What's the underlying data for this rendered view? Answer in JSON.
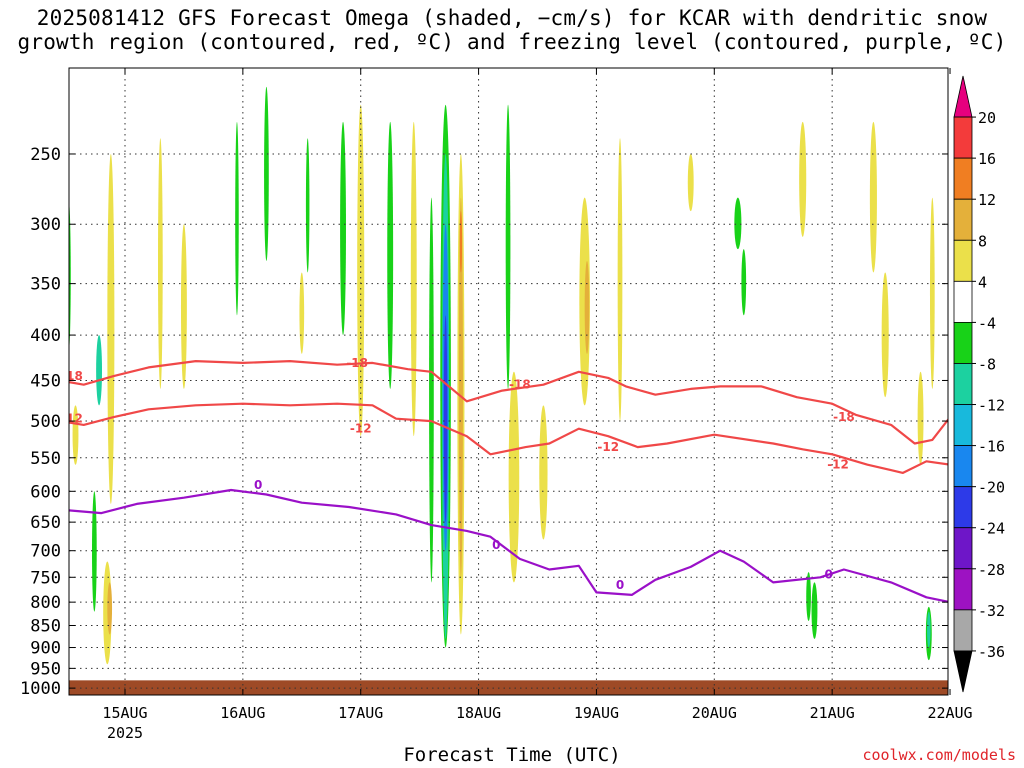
{
  "header": {
    "title_line1": "2025081412 GFS Forecast Omega (shaded, −cm/s) for KCAR with dendritic snow",
    "title_line2": "growth region (contoured, red, ºC) and freezing level (contoured, purple, ºC)"
  },
  "footer": {
    "xlabel": "Forecast Time (UTC)",
    "credit": "coolwx.com/models"
  },
  "chart_data": {
    "type": "heatmap",
    "title": "2025081412 GFS Forecast Omega (shaded, −cm/s) for KCAR with dendritic snow growth region (contoured, red, ºC) and freezing level (contoured, purple, ºC)",
    "xlabel": "Forecast Time (UTC)",
    "ylabel": "",
    "x_range_days_label": [
      "15AUG",
      "22AUG"
    ],
    "x_ticks": [
      {
        "label": "15AUG",
        "sublabel": "2025",
        "day": 0
      },
      {
        "label": "16AUG",
        "sublabel": "",
        "day": 1
      },
      {
        "label": "17AUG",
        "sublabel": "",
        "day": 2
      },
      {
        "label": "18AUG",
        "sublabel": "",
        "day": 3
      },
      {
        "label": "19AUG",
        "sublabel": "",
        "day": 4
      },
      {
        "label": "20AUG",
        "sublabel": "",
        "day": 5
      },
      {
        "label": "21AUG",
        "sublabel": "",
        "day": 6
      },
      {
        "label": "22AUG",
        "sublabel": "",
        "day": 7
      }
    ],
    "x_start_day": -0.75,
    "x_end_day": 7,
    "y_ticks": [
      250,
      300,
      350,
      400,
      450,
      500,
      550,
      600,
      650,
      700,
      750,
      800,
      850,
      900,
      950,
      1000
    ],
    "y_range": [
      200,
      1018
    ],
    "y_scale": "log",
    "y_reversed": true,
    "grid": true,
    "colorbar": {
      "labels": [
        "20",
        "16",
        "12",
        "8",
        "4",
        "-4",
        "-8",
        "-12",
        "-16",
        "-20",
        "-24",
        "-28",
        "-32",
        "-36"
      ],
      "bins": [
        {
          "color": "#e6007e",
          "kind": "triangle-up"
        },
        {
          "color": "#f33b3b"
        },
        {
          "color": "#f07e22"
        },
        {
          "color": "#e4b03a"
        },
        {
          "color": "#ebe04a"
        },
        {
          "color": "#ffffff"
        },
        {
          "color": "#18d218"
        },
        {
          "color": "#1cd1a0"
        },
        {
          "color": "#18b9dc"
        },
        {
          "color": "#1987ef"
        },
        {
          "color": "#2d3ae8"
        },
        {
          "color": "#6e16c8"
        },
        {
          "color": "#9d12c2"
        },
        {
          "color": "#a8a8a8"
        },
        {
          "color": "#000000",
          "kind": "triangle-down"
        }
      ]
    },
    "ground": {
      "color": "#9e4a26",
      "from_pressure": 980
    },
    "omega_features": [
      {
        "x": -0.12,
        "p_top": 250,
        "p_bot": 620,
        "w": 0.06,
        "color": "#ebe04a"
      },
      {
        "x": -0.15,
        "p_top": 720,
        "p_bot": 940,
        "w": 0.07,
        "color": "#ebe04a"
      },
      {
        "x": -0.13,
        "p_top": 760,
        "p_bot": 870,
        "w": 0.04,
        "color": "#e4b03a"
      },
      {
        "x": -0.22,
        "p_top": 400,
        "p_bot": 480,
        "w": 0.05,
        "color": "#1cd1a0"
      },
      {
        "x": -0.26,
        "p_top": 600,
        "p_bot": 820,
        "w": 0.04,
        "color": "#18d218"
      },
      {
        "x": -0.48,
        "p_top": 280,
        "p_bot": 420,
        "w": 0.04,
        "color": "#18d218"
      },
      {
        "x": -0.42,
        "p_top": 480,
        "p_bot": 560,
        "w": 0.05,
        "color": "#ebe04a"
      },
      {
        "x": 0.3,
        "p_top": 240,
        "p_bot": 460,
        "w": 0.04,
        "color": "#ebe04a"
      },
      {
        "x": 0.5,
        "p_top": 300,
        "p_bot": 460,
        "w": 0.05,
        "color": "#ebe04a"
      },
      {
        "x": 0.95,
        "p_top": 230,
        "p_bot": 380,
        "w": 0.03,
        "color": "#18d218"
      },
      {
        "x": 1.2,
        "p_top": 210,
        "p_bot": 330,
        "w": 0.04,
        "color": "#18d218"
      },
      {
        "x": 1.5,
        "p_top": 340,
        "p_bot": 420,
        "w": 0.04,
        "color": "#ebe04a"
      },
      {
        "x": 1.55,
        "p_top": 240,
        "p_bot": 340,
        "w": 0.03,
        "color": "#18d218"
      },
      {
        "x": 1.85,
        "p_top": 230,
        "p_bot": 400,
        "w": 0.05,
        "color": "#18d218"
      },
      {
        "x": 2.0,
        "p_top": 220,
        "p_bot": 520,
        "w": 0.06,
        "color": "#ebe04a"
      },
      {
        "x": 2.25,
        "p_top": 230,
        "p_bot": 460,
        "w": 0.05,
        "color": "#18d218"
      },
      {
        "x": 2.45,
        "p_top": 230,
        "p_bot": 520,
        "w": 0.05,
        "color": "#ebe04a"
      },
      {
        "x": 2.6,
        "p_top": 280,
        "p_bot": 760,
        "w": 0.04,
        "color": "#18d218"
      },
      {
        "x": 2.72,
        "p_top": 220,
        "p_bot": 900,
        "w": 0.09,
        "color": "#18d218"
      },
      {
        "x": 2.72,
        "p_top": 250,
        "p_bot": 880,
        "w": 0.06,
        "color": "#1cd1a0"
      },
      {
        "x": 2.72,
        "p_top": 300,
        "p_bot": 700,
        "w": 0.05,
        "color": "#1987ef"
      },
      {
        "x": 2.72,
        "p_top": 380,
        "p_bot": 650,
        "w": 0.03,
        "color": "#2d3ae8"
      },
      {
        "x": 2.85,
        "p_top": 250,
        "p_bot": 870,
        "w": 0.06,
        "color": "#ebe04a"
      },
      {
        "x": 2.85,
        "p_top": 280,
        "p_bot": 750,
        "w": 0.035,
        "color": "#e4b03a"
      },
      {
        "x": 2.85,
        "p_top": 290,
        "p_bot": 340,
        "w": 0.02,
        "color": "#f07e22"
      },
      {
        "x": 3.25,
        "p_top": 220,
        "p_bot": 460,
        "w": 0.04,
        "color": "#18d218"
      },
      {
        "x": 3.3,
        "p_top": 440,
        "p_bot": 760,
        "w": 0.09,
        "color": "#ebe04a"
      },
      {
        "x": 3.55,
        "p_top": 480,
        "p_bot": 680,
        "w": 0.07,
        "color": "#ebe04a"
      },
      {
        "x": 3.9,
        "p_top": 280,
        "p_bot": 480,
        "w": 0.09,
        "color": "#ebe04a"
      },
      {
        "x": 3.92,
        "p_top": 330,
        "p_bot": 420,
        "w": 0.04,
        "color": "#e4b03a"
      },
      {
        "x": 4.2,
        "p_top": 240,
        "p_bot": 500,
        "w": 0.04,
        "color": "#ebe04a"
      },
      {
        "x": 4.8,
        "p_top": 250,
        "p_bot": 290,
        "w": 0.05,
        "color": "#ebe04a"
      },
      {
        "x": 5.2,
        "p_top": 280,
        "p_bot": 320,
        "w": 0.06,
        "color": "#18d218"
      },
      {
        "x": 5.25,
        "p_top": 320,
        "p_bot": 380,
        "w": 0.04,
        "color": "#18d218"
      },
      {
        "x": 5.75,
        "p_top": 230,
        "p_bot": 310,
        "w": 0.06,
        "color": "#ebe04a"
      },
      {
        "x": 5.8,
        "p_top": 740,
        "p_bot": 840,
        "w": 0.04,
        "color": "#18d218"
      },
      {
        "x": 5.85,
        "p_top": 760,
        "p_bot": 880,
        "w": 0.05,
        "color": "#18d218"
      },
      {
        "x": 6.35,
        "p_top": 230,
        "p_bot": 340,
        "w": 0.06,
        "color": "#ebe04a"
      },
      {
        "x": 6.45,
        "p_top": 340,
        "p_bot": 470,
        "w": 0.06,
        "color": "#ebe04a"
      },
      {
        "x": 6.75,
        "p_top": 440,
        "p_bot": 560,
        "w": 0.05,
        "color": "#ebe04a"
      },
      {
        "x": 6.82,
        "p_top": 810,
        "p_bot": 930,
        "w": 0.05,
        "color": "#18d218"
      },
      {
        "x": 6.82,
        "p_top": 820,
        "p_bot": 900,
        "w": 0.03,
        "color": "#1cd1a0"
      },
      {
        "x": 6.85,
        "p_top": 280,
        "p_bot": 460,
        "w": 0.04,
        "color": "#ebe04a"
      }
    ],
    "series": [
      {
        "name": "-18",
        "color": "#f04848",
        "labels": [
          {
            "day": -0.45,
            "p": 445
          },
          {
            "day": 1.97,
            "p": 430
          },
          {
            "day": 3.35,
            "p": 455
          },
          {
            "day": 6.1,
            "p": 495
          }
        ],
        "points": [
          [
            -0.75,
            432
          ],
          [
            -0.55,
            450
          ],
          [
            -0.35,
            455
          ],
          [
            -0.1,
            445
          ],
          [
            0.2,
            435
          ],
          [
            0.6,
            428
          ],
          [
            1.0,
            430
          ],
          [
            1.4,
            428
          ],
          [
            1.8,
            432
          ],
          [
            2.1,
            430
          ],
          [
            2.4,
            437
          ],
          [
            2.6,
            440
          ],
          [
            2.9,
            475
          ],
          [
            3.2,
            462
          ],
          [
            3.55,
            455
          ],
          [
            3.85,
            440
          ],
          [
            4.1,
            447
          ],
          [
            4.25,
            457
          ],
          [
            4.5,
            467
          ],
          [
            4.8,
            460
          ],
          [
            5.05,
            457
          ],
          [
            5.4,
            457
          ],
          [
            5.7,
            470
          ],
          [
            6.0,
            478
          ],
          [
            6.2,
            492
          ],
          [
            6.5,
            505
          ],
          [
            6.7,
            530
          ],
          [
            6.85,
            525
          ],
          [
            7.0,
            495
          ]
        ]
      },
      {
        "name": "-12",
        "color": "#f04848",
        "labels": [
          {
            "day": -0.45,
            "p": 497
          },
          {
            "day": 2.0,
            "p": 510
          },
          {
            "day": 4.1,
            "p": 535
          },
          {
            "day": 6.05,
            "p": 560
          }
        ],
        "points": [
          [
            -0.75,
            490
          ],
          [
            -0.55,
            500
          ],
          [
            -0.35,
            505
          ],
          [
            -0.1,
            495
          ],
          [
            0.2,
            485
          ],
          [
            0.6,
            480
          ],
          [
            1.0,
            478
          ],
          [
            1.4,
            480
          ],
          [
            1.8,
            478
          ],
          [
            2.1,
            480
          ],
          [
            2.3,
            497
          ],
          [
            2.6,
            500
          ],
          [
            2.9,
            520
          ],
          [
            3.1,
            545
          ],
          [
            3.4,
            535
          ],
          [
            3.6,
            530
          ],
          [
            3.85,
            510
          ],
          [
            4.1,
            520
          ],
          [
            4.35,
            535
          ],
          [
            4.6,
            530
          ],
          [
            5.0,
            518
          ],
          [
            5.5,
            530
          ],
          [
            5.75,
            538
          ],
          [
            6.0,
            545
          ],
          [
            6.3,
            560
          ],
          [
            6.6,
            572
          ],
          [
            6.8,
            555
          ],
          [
            7.0,
            560
          ]
        ]
      },
      {
        "name": "0",
        "color": "#9a10c8",
        "labels": [
          {
            "day": 1.13,
            "p": 590
          },
          {
            "day": 3.15,
            "p": 690
          },
          {
            "day": 4.2,
            "p": 765
          },
          {
            "day": 5.97,
            "p": 745
          }
        ],
        "points": [
          [
            -0.75,
            635
          ],
          [
            -0.5,
            630
          ],
          [
            -0.2,
            635
          ],
          [
            0.1,
            620
          ],
          [
            0.5,
            610
          ],
          [
            0.9,
            598
          ],
          [
            1.2,
            605
          ],
          [
            1.5,
            618
          ],
          [
            1.9,
            625
          ],
          [
            2.3,
            637
          ],
          [
            2.6,
            655
          ],
          [
            2.9,
            665
          ],
          [
            3.1,
            675
          ],
          [
            3.35,
            715
          ],
          [
            3.6,
            735
          ],
          [
            3.85,
            728
          ],
          [
            4.0,
            780
          ],
          [
            4.3,
            785
          ],
          [
            4.5,
            755
          ],
          [
            4.8,
            730
          ],
          [
            5.05,
            700
          ],
          [
            5.25,
            720
          ],
          [
            5.5,
            760
          ],
          [
            5.9,
            750
          ],
          [
            6.1,
            735
          ],
          [
            6.5,
            760
          ],
          [
            6.8,
            790
          ],
          [
            7.0,
            800
          ]
        ]
      }
    ]
  }
}
